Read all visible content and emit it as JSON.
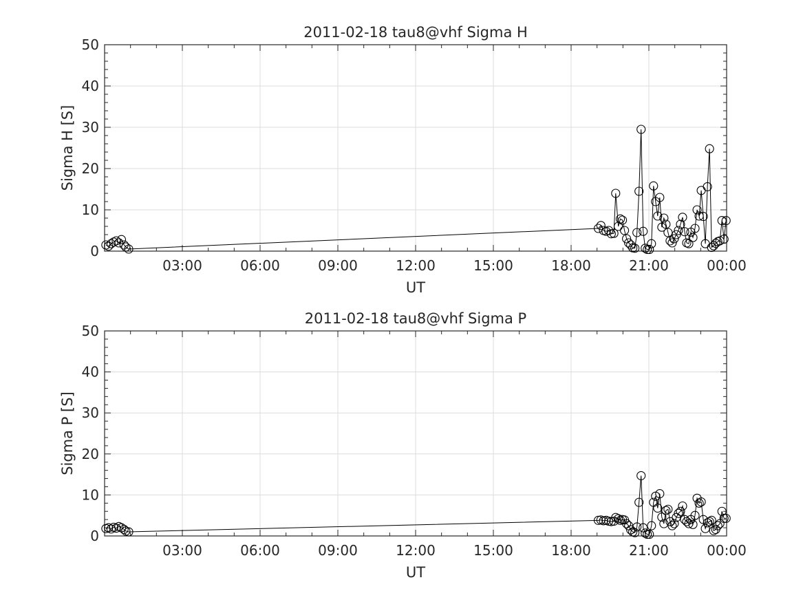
{
  "colors": {
    "text": "#262626",
    "grid": "#dcdcdc",
    "series": "#000000"
  },
  "chart_data": [
    {
      "type": "line",
      "marker": "circle",
      "title": "2011-02-18  tau8@vhf Sigma H",
      "xlabel": "UT",
      "ylabel": "Sigma H [S]",
      "xlim_hours": [
        0,
        24
      ],
      "ylim": [
        0,
        50
      ],
      "xticks": [
        {
          "value": 3,
          "label": "03:00"
        },
        {
          "value": 6,
          "label": "06:00"
        },
        {
          "value": 9,
          "label": "09:00"
        },
        {
          "value": 12,
          "label": "12:00"
        },
        {
          "value": 15,
          "label": "15:00"
        },
        {
          "value": 18,
          "label": "18:00"
        },
        {
          "value": 21,
          "label": "21:00"
        },
        {
          "value": 24,
          "label": "00:00"
        }
      ],
      "yticks": [
        0,
        10,
        20,
        30,
        40,
        50
      ],
      "grid": true,
      "x_hours": [
        0.05,
        0.15,
        0.25,
        0.35,
        0.45,
        0.55,
        0.65,
        0.75,
        0.82,
        0.93,
        19.05,
        19.15,
        19.25,
        19.35,
        19.45,
        19.55,
        19.65,
        19.72,
        19.82,
        19.9,
        19.98,
        20.06,
        20.14,
        20.22,
        20.3,
        20.38,
        20.46,
        20.54,
        20.62,
        20.7,
        20.78,
        20.86,
        20.94,
        21.02,
        21.1,
        21.18,
        21.26,
        21.34,
        21.42,
        21.5,
        21.58,
        21.66,
        21.74,
        21.82,
        21.9,
        21.98,
        22.06,
        22.14,
        22.22,
        22.3,
        22.38,
        22.46,
        22.54,
        22.62,
        22.7,
        22.78,
        22.86,
        22.94,
        23.02,
        23.1,
        23.18,
        23.26,
        23.34,
        23.42,
        23.5,
        23.58,
        23.66,
        23.74,
        23.82,
        23.9,
        23.98
      ],
      "values": [
        1.5,
        1.2,
        1.8,
        2.2,
        2.5,
        2.0,
        2.8,
        1.5,
        1.0,
        0.5,
        5.5,
        6.2,
        5.0,
        4.8,
        5.0,
        4.2,
        4.3,
        14.0,
        6.0,
        7.8,
        7.5,
        5.0,
        3.0,
        2.0,
        1.5,
        0.8,
        0.7,
        4.5,
        14.5,
        29.5,
        4.8,
        0.7,
        0.4,
        0.4,
        1.8,
        15.8,
        12.0,
        8.5,
        13.0,
        5.8,
        8.0,
        6.5,
        4.5,
        2.5,
        2.0,
        3.0,
        4.0,
        5.0,
        6.5,
        8.2,
        4.7,
        2.0,
        1.8,
        4.6,
        3.3,
        5.5,
        10.0,
        8.5,
        14.7,
        8.4,
        1.8,
        15.6,
        24.8,
        0.9,
        1.3,
        1.9,
        2.3,
        2.5,
        7.4,
        2.9,
        7.4
      ]
    },
    {
      "type": "line",
      "marker": "circle",
      "title": "2011-02-18  tau8@vhf Sigma P",
      "xlabel": "UT",
      "ylabel": "Sigma P [S]",
      "xlim_hours": [
        0,
        24
      ],
      "ylim": [
        0,
        50
      ],
      "xticks": [
        {
          "value": 3,
          "label": "03:00"
        },
        {
          "value": 6,
          "label": "06:00"
        },
        {
          "value": 9,
          "label": "09:00"
        },
        {
          "value": 12,
          "label": "12:00"
        },
        {
          "value": 15,
          "label": "15:00"
        },
        {
          "value": 18,
          "label": "18:00"
        },
        {
          "value": 21,
          "label": "21:00"
        },
        {
          "value": 24,
          "label": "00:00"
        }
      ],
      "yticks": [
        0,
        10,
        20,
        30,
        40,
        50
      ],
      "grid": true,
      "x_hours": [
        0.05,
        0.15,
        0.25,
        0.35,
        0.45,
        0.55,
        0.65,
        0.75,
        0.82,
        0.93,
        19.05,
        19.15,
        19.25,
        19.35,
        19.45,
        19.55,
        19.65,
        19.72,
        19.82,
        19.9,
        19.98,
        20.06,
        20.14,
        20.22,
        20.3,
        20.38,
        20.46,
        20.54,
        20.62,
        20.7,
        20.78,
        20.86,
        20.94,
        21.02,
        21.1,
        21.18,
        21.26,
        21.34,
        21.42,
        21.5,
        21.58,
        21.66,
        21.74,
        21.82,
        21.9,
        21.98,
        22.06,
        22.14,
        22.22,
        22.3,
        22.38,
        22.46,
        22.54,
        22.62,
        22.7,
        22.78,
        22.86,
        22.94,
        23.02,
        23.1,
        23.18,
        23.26,
        23.34,
        23.42,
        23.5,
        23.58,
        23.66,
        23.74,
        23.82,
        23.9,
        23.98
      ],
      "values": [
        1.8,
        2.0,
        1.7,
        2.1,
        1.9,
        2.3,
        2.0,
        1.6,
        1.2,
        1.0,
        3.8,
        3.9,
        3.7,
        3.8,
        3.6,
        3.5,
        3.6,
        4.5,
        4.2,
        3.8,
        4.0,
        3.9,
        3.0,
        2.5,
        1.5,
        1.0,
        0.8,
        2.2,
        8.2,
        14.7,
        2.0,
        0.7,
        0.4,
        0.4,
        2.5,
        8.2,
        9.7,
        6.8,
        10.3,
        4.6,
        3.0,
        6.2,
        6.5,
        3.5,
        2.5,
        3.0,
        4.5,
        5.5,
        6.0,
        7.3,
        4.0,
        3.5,
        3.0,
        4.0,
        2.8,
        5.0,
        9.2,
        8.0,
        8.3,
        4.0,
        1.8,
        3.2,
        3.5,
        3.8,
        1.3,
        1.6,
        2.5,
        3.0,
        6.0,
        4.3,
        4.3
      ]
    }
  ]
}
